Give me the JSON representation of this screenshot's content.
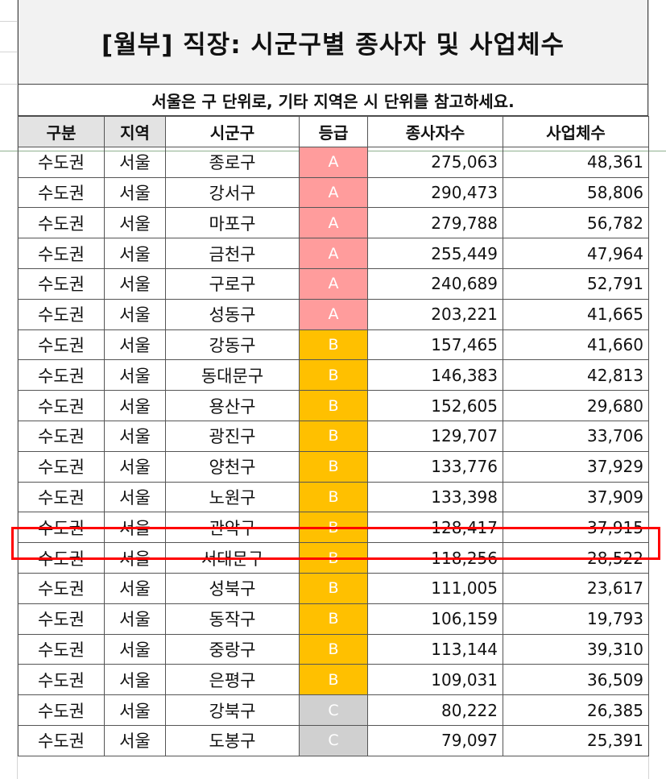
{
  "title": "[월부] 직장: 시군구별 종사자 및 사업체수",
  "note": "서울은 구 단위로, 기타 지역은 시 단위를 참고하세요.",
  "headers": [
    "구분",
    "지역",
    "시군구",
    "등급",
    "종사자수",
    "사업체수"
  ],
  "grade_colors": {
    "A": "#ff9c9c",
    "B": "#ffc000",
    "C": "#d0d0d0"
  },
  "rows": [
    {
      "region_group": "수도권",
      "region": "서울",
      "district": "종로구",
      "grade": "A",
      "workers": "275,063",
      "businesses": "48,361"
    },
    {
      "region_group": "수도권",
      "region": "서울",
      "district": "강서구",
      "grade": "A",
      "workers": "290,473",
      "businesses": "58,806"
    },
    {
      "region_group": "수도권",
      "region": "서울",
      "district": "마포구",
      "grade": "A",
      "workers": "279,788",
      "businesses": "56,782"
    },
    {
      "region_group": "수도권",
      "region": "서울",
      "district": "금천구",
      "grade": "A",
      "workers": "255,449",
      "businesses": "47,964"
    },
    {
      "region_group": "수도권",
      "region": "서울",
      "district": "구로구",
      "grade": "A",
      "workers": "240,689",
      "businesses": "52,791"
    },
    {
      "region_group": "수도권",
      "region": "서울",
      "district": "성동구",
      "grade": "A",
      "workers": "203,221",
      "businesses": "41,665"
    },
    {
      "region_group": "수도권",
      "region": "서울",
      "district": "강동구",
      "grade": "B",
      "workers": "157,465",
      "businesses": "41,660"
    },
    {
      "region_group": "수도권",
      "region": "서울",
      "district": "동대문구",
      "grade": "B",
      "workers": "146,383",
      "businesses": "42,813"
    },
    {
      "region_group": "수도권",
      "region": "서울",
      "district": "용산구",
      "grade": "B",
      "workers": "152,605",
      "businesses": "29,680"
    },
    {
      "region_group": "수도권",
      "region": "서울",
      "district": "광진구",
      "grade": "B",
      "workers": "129,707",
      "businesses": "33,706"
    },
    {
      "region_group": "수도권",
      "region": "서울",
      "district": "양천구",
      "grade": "B",
      "workers": "133,776",
      "businesses": "37,929"
    },
    {
      "region_group": "수도권",
      "region": "서울",
      "district": "노원구",
      "grade": "B",
      "workers": "133,398",
      "businesses": "37,909"
    },
    {
      "region_group": "수도권",
      "region": "서울",
      "district": "관악구",
      "grade": "B",
      "workers": "128,417",
      "businesses": "37,915"
    },
    {
      "region_group": "수도권",
      "region": "서울",
      "district": "서대문구",
      "grade": "B",
      "workers": "118,256",
      "businesses": "28,522"
    },
    {
      "region_group": "수도권",
      "region": "서울",
      "district": "성북구",
      "grade": "B",
      "workers": "111,005",
      "businesses": "23,617"
    },
    {
      "region_group": "수도권",
      "region": "서울",
      "district": "동작구",
      "grade": "B",
      "workers": "106,159",
      "businesses": "19,793"
    },
    {
      "region_group": "수도권",
      "region": "서울",
      "district": "중랑구",
      "grade": "B",
      "workers": "113,144",
      "businesses": "39,310"
    },
    {
      "region_group": "수도권",
      "region": "서울",
      "district": "은평구",
      "grade": "B",
      "workers": "109,031",
      "businesses": "36,509"
    },
    {
      "region_group": "수도권",
      "region": "서울",
      "district": "강북구",
      "grade": "C",
      "workers": "80,222",
      "businesses": "26,385"
    },
    {
      "region_group": "수도권",
      "region": "서울",
      "district": "도봉구",
      "grade": "C",
      "workers": "79,097",
      "businesses": "25,391"
    }
  ],
  "highlighted_district": "관악구"
}
